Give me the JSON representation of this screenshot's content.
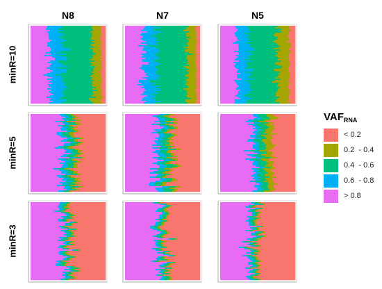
{
  "chart_data": {
    "type": "heatmap",
    "columns": [
      "N8",
      "N7",
      "N5"
    ],
    "rows": [
      "minR=10",
      "minR=5",
      "minR=3"
    ],
    "legend": {
      "title_main": "VAF",
      "title_sub": "RNA",
      "items": [
        {
          "label": "< 0.2",
          "color": "#f8766d"
        },
        {
          "label": "0.2  - 0.4",
          "color": "#a3a500"
        },
        {
          "label": "0.4  - 0.6",
          "color": "#00bf7d"
        },
        {
          "label": "0.6  - 0.8",
          "color": "#00b0f6"
        },
        {
          "label": "> 0.8",
          "color": "#e76bf3"
        }
      ]
    },
    "panels": [
      {
        "row": "minR=10",
        "col": "N8",
        "category_fractions": [
          0.06,
          0.12,
          0.4,
          0.18,
          0.24
        ]
      },
      {
        "row": "minR=10",
        "col": "N7",
        "category_fractions": [
          0.05,
          0.12,
          0.42,
          0.17,
          0.24
        ]
      },
      {
        "row": "minR=10",
        "col": "N5",
        "category_fractions": [
          0.08,
          0.16,
          0.38,
          0.16,
          0.22
        ]
      },
      {
        "row": "minR=5",
        "col": "N8",
        "category_fractions": [
          0.38,
          0.05,
          0.08,
          0.07,
          0.42
        ]
      },
      {
        "row": "minR=5",
        "col": "N7",
        "category_fractions": [
          0.36,
          0.05,
          0.09,
          0.08,
          0.42
        ]
      },
      {
        "row": "minR=5",
        "col": "N5",
        "category_fractions": [
          0.3,
          0.1,
          0.1,
          0.07,
          0.43
        ]
      },
      {
        "row": "minR=3",
        "col": "N8",
        "category_fractions": [
          0.45,
          0.03,
          0.05,
          0.04,
          0.43
        ]
      },
      {
        "row": "minR=3",
        "col": "N7",
        "category_fractions": [
          0.44,
          0.03,
          0.05,
          0.04,
          0.44
        ]
      },
      {
        "row": "minR=3",
        "col": "N5",
        "category_fractions": [
          0.48,
          0.03,
          0.05,
          0.04,
          0.4
        ]
      }
    ]
  }
}
